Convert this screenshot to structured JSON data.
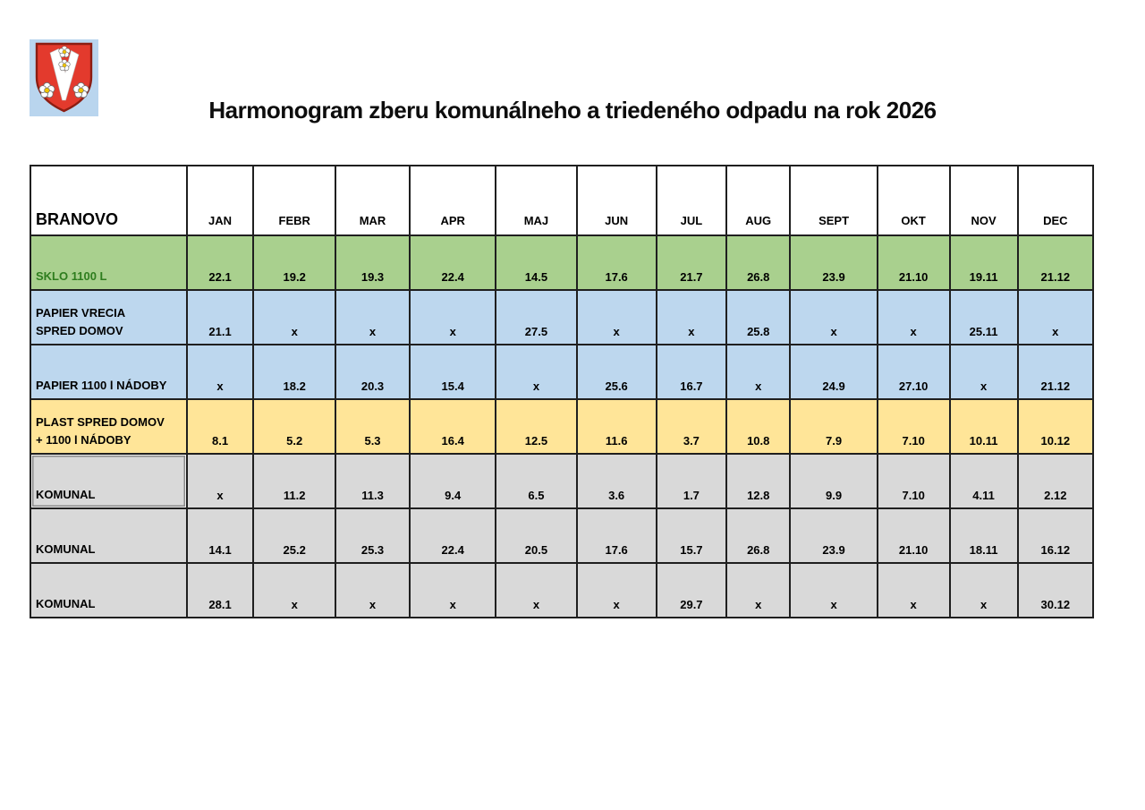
{
  "title": "Harmonogram zberu komunálneho a triedeného odpadu na rok 2026",
  "logo": {
    "description": "Branovo municipal coat of arms: red shield with white plowshare and white flowers on light blue background",
    "shield_color": "#e33a2d",
    "shield_outline": "#8c1d12",
    "background": "#b9d5ee",
    "flower_petal": "#ffffff",
    "flower_center": "#f2c500"
  },
  "table": {
    "corner_label": "BRANOVO",
    "months": [
      "JAN",
      "FEBR",
      "MAR",
      "APR",
      "MAJ",
      "JUN",
      "JUL",
      "AUG",
      "SEPT",
      "OKT",
      "NOV",
      "DEC"
    ],
    "rows": [
      {
        "label_lines": [
          "SKLO 1100 L"
        ],
        "style": "green",
        "label_color": "#2e7d1e",
        "values": [
          "22.1",
          "19.2",
          "19.3",
          "22.4",
          "14.5",
          "17.6",
          "21.7",
          "26.8",
          "23.9",
          "21.10",
          "19.11",
          "21.12"
        ]
      },
      {
        "label_lines": [
          "PAPIER VRECIA",
          "SPRED DOMOV"
        ],
        "style": "blue",
        "values": [
          "21.1",
          "x",
          "x",
          "x",
          "27.5",
          "x",
          "x",
          "25.8",
          "x",
          "x",
          "25.11",
          "x"
        ]
      },
      {
        "label_lines": [
          "PAPIER 1100 l NÁDOBY"
        ],
        "style": "blue",
        "values": [
          "x",
          "18.2",
          "20.3",
          "15.4",
          "x",
          "25.6",
          "16.7",
          "x",
          "24.9",
          "27.10",
          "x",
          "21.12"
        ]
      },
      {
        "label_lines": [
          "PLAST SPRED DOMOV",
          "+ 1100 l NÁDOBY"
        ],
        "style": "yellow",
        "values": [
          "8.1",
          "5.2",
          "5.3",
          "16.4",
          "12.5",
          "11.6",
          "3.7",
          "10.8",
          "7.9",
          "7.10",
          "10.11",
          "10.12"
        ]
      },
      {
        "label_lines": [
          "KOMUNAL"
        ],
        "style": "gray",
        "selected": true,
        "values": [
          "x",
          "11.2",
          "11.3",
          "9.4",
          "6.5",
          "3.6",
          "1.7",
          "12.8",
          "9.9",
          "7.10",
          "4.11",
          "2.12"
        ]
      },
      {
        "label_lines": [
          "KOMUNAL"
        ],
        "style": "gray",
        "values": [
          "14.1",
          "25.2",
          "25.3",
          "22.4",
          "20.5",
          "17.6",
          "15.7",
          "26.8",
          "23.9",
          "21.10",
          "18.11",
          "16.12"
        ]
      },
      {
        "label_lines": [
          "KOMUNAL"
        ],
        "style": "gray",
        "values": [
          "28.1",
          "x",
          "x",
          "x",
          "x",
          "x",
          "29.7",
          "x",
          "x",
          "x",
          "x",
          "30.12"
        ]
      }
    ]
  },
  "colors": {
    "green": "#a9d08e",
    "blue": "#bdd7ee",
    "yellow": "#ffe598",
    "gray": "#d9d9d9",
    "border": "#1f1f1f"
  }
}
